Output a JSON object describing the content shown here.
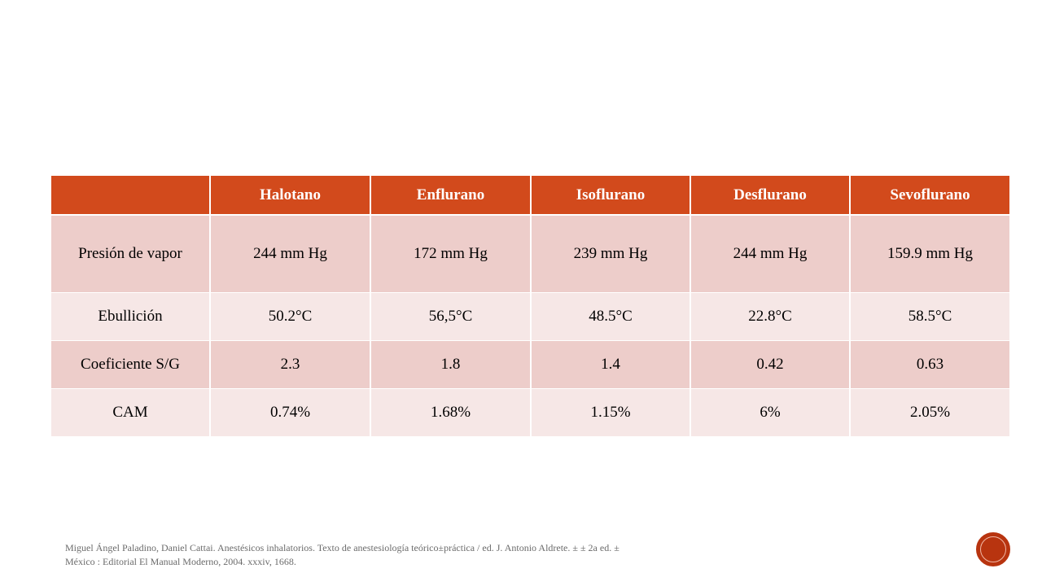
{
  "table": {
    "headers": [
      "",
      "Halotano",
      "Enflurano",
      "Isoflurano",
      "Desflurano",
      "Sevoflurano"
    ],
    "rows": [
      {
        "label": "Presión de vapor",
        "values": [
          "244 mm Hg",
          "172 mm Hg",
          "239 mm Hg",
          "244 mm Hg",
          "159.9 mm Hg"
        ]
      },
      {
        "label": "Ebullición",
        "values": [
          "50.2°C",
          "56,5°C",
          "48.5°C",
          "22.8°C",
          "58.5°C"
        ]
      },
      {
        "label": "Coeficiente S/G",
        "values": [
          "2.3",
          "1.8",
          "1.4",
          "0.42",
          "0.63"
        ]
      },
      {
        "label": "CAM",
        "values": [
          "0.74%",
          "1.68%",
          "1.15%",
          "6%",
          "2.05%"
        ]
      }
    ]
  },
  "citation": {
    "line1": "Miguel Ángel Paladino, Daniel Cattai. Anestésicos inhalatorios. Texto de anestesiología teórico±práctica / ed. J. Antonio Aldrete. ± ± 2a ed. ±",
    "line2": "México : Editorial El Manual Moderno, 2004. xxxiv, 1668."
  },
  "colors": {
    "header_bg": "#d24a1c",
    "row_dark": "#edcdca",
    "row_light": "#f6e7e6",
    "nav_circle": "#b8340f"
  }
}
